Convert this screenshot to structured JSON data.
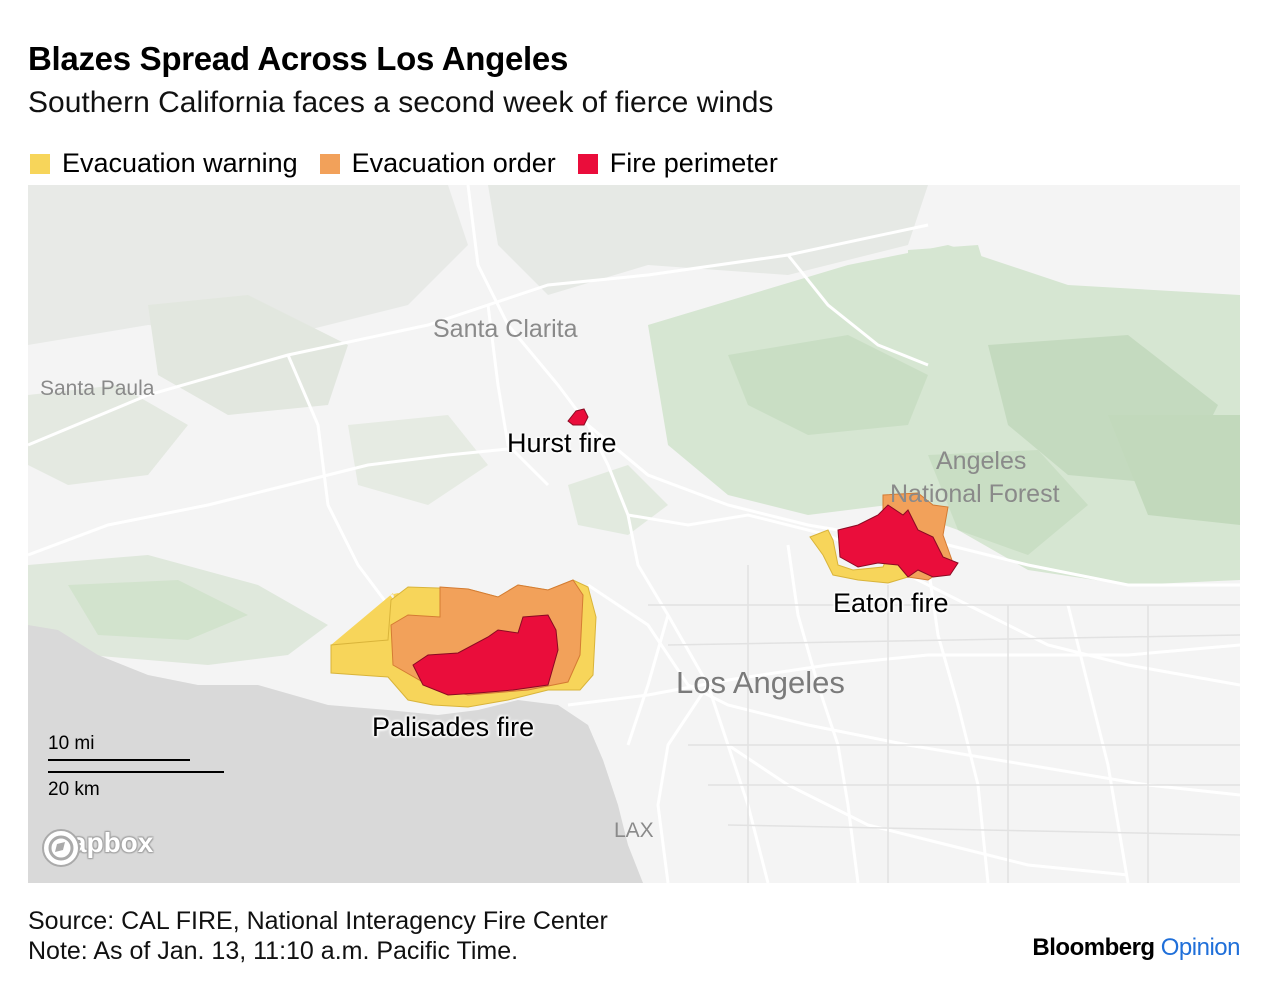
{
  "header": {
    "title": "Blazes Spread Across Los Angeles",
    "subtitle": "Southern California faces a second week of fierce winds"
  },
  "legend": [
    {
      "label": "Evacuation warning",
      "color": "#f7d55a"
    },
    {
      "label": "Evacuation order",
      "color": "#f2a15a"
    },
    {
      "label": "Fire perimeter",
      "color": "#ea0d3b"
    }
  ],
  "map": {
    "places": {
      "santa_clarita": "Santa Clarita",
      "santa_paula": "Santa Paula",
      "angeles_line1": "Angeles",
      "angeles_line2": "National Forest",
      "los_angeles": "Los Angeles",
      "lax": "LAX"
    },
    "fires": {
      "hurst": "Hurst fire",
      "eaton": "Eaton fire",
      "palisades": "Palisades fire"
    },
    "scale": {
      "miles": "10 mi",
      "km": "20 km"
    },
    "attribution": "mapbox",
    "colors": {
      "land": "#f4f4f4",
      "ocean": "#d9d9d9",
      "forest": "#cfe3cc",
      "roads": "#ffffff"
    }
  },
  "footer": {
    "source": "Source: CAL FIRE, National Interagency Fire Center",
    "note": "Note: As of Jan. 13, 11:10 a.m. Pacific Time.",
    "brand_main": "Bloomberg",
    "brand_accent": "Opinion"
  }
}
